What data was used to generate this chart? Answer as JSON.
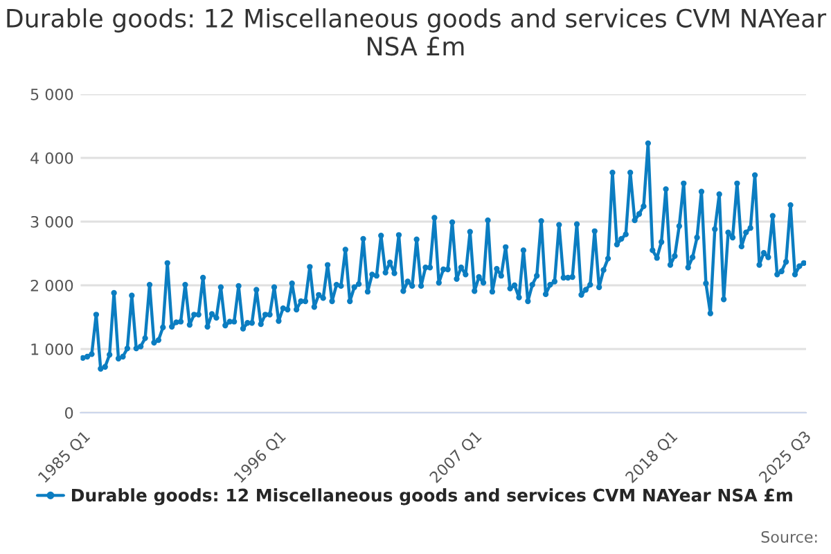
{
  "chart_data": {
    "type": "line",
    "title": "Durable goods: 12 Miscellaneous goods and services CVM NAYear NSA £m",
    "categories": [
      "1985 Q1",
      null,
      null,
      null,
      null,
      null,
      null,
      null,
      null,
      null,
      null,
      null,
      null,
      null,
      null,
      null,
      null,
      null,
      null,
      null,
      null,
      null,
      null,
      null,
      null,
      null,
      null,
      null,
      null,
      null,
      null,
      null,
      null,
      null,
      null,
      null,
      null,
      null,
      null,
      null,
      null,
      null,
      null,
      null,
      "1996 Q1",
      null,
      null,
      null,
      null,
      null,
      null,
      null,
      null,
      null,
      null,
      null,
      null,
      null,
      null,
      null,
      null,
      null,
      null,
      null,
      null,
      null,
      null,
      null,
      null,
      null,
      null,
      null,
      null,
      null,
      null,
      null,
      null,
      null,
      null,
      null,
      null,
      null,
      null,
      null,
      null,
      null,
      null,
      null,
      "2007 Q1",
      null,
      null,
      null,
      null,
      null,
      null,
      null,
      null,
      null,
      null,
      null,
      null,
      null,
      null,
      null,
      null,
      null,
      null,
      null,
      null,
      null,
      null,
      null,
      null,
      null,
      null,
      null,
      null,
      null,
      null,
      null,
      null,
      null,
      null,
      null,
      null,
      null,
      null,
      null,
      null,
      null,
      null,
      null,
      "2018 Q1",
      null,
      null,
      null,
      null,
      null,
      null,
      null,
      null,
      null,
      null,
      null,
      null,
      null,
      null,
      null,
      null,
      null,
      null,
      null,
      null,
      null,
      null,
      null,
      null,
      null,
      null,
      null,
      null,
      null,
      "2025 Q3"
    ],
    "series": [
      {
        "name": "Durable goods: 12 Miscellaneous goods and services CVM NAYear NSA £m",
        "color": "#0b7dc1",
        "values": [
          860,
          880,
          920,
          1540,
          690,
          720,
          910,
          1880,
          850,
          880,
          1010,
          1840,
          1010,
          1040,
          1170,
          2010,
          1100,
          1140,
          1340,
          2350,
          1350,
          1420,
          1430,
          2010,
          1380,
          1540,
          1540,
          2120,
          1350,
          1550,
          1490,
          1970,
          1370,
          1430,
          1430,
          1990,
          1320,
          1410,
          1410,
          1930,
          1390,
          1540,
          1540,
          1970,
          1440,
          1640,
          1620,
          2030,
          1620,
          1750,
          1750,
          2290,
          1660,
          1850,
          1800,
          2320,
          1750,
          2010,
          1990,
          2560,
          1750,
          1970,
          2020,
          2730,
          1900,
          2170,
          2150,
          2780,
          2200,
          2360,
          2190,
          2790,
          1910,
          2060,
          1990,
          2720,
          1990,
          2280,
          2280,
          3060,
          2040,
          2250,
          2250,
          2990,
          2100,
          2280,
          2170,
          2840,
          1910,
          2130,
          2040,
          3020,
          1900,
          2260,
          2150,
          2600,
          1950,
          2000,
          1810,
          2550,
          1750,
          2010,
          2150,
          3010,
          1860,
          2010,
          2060,
          2950,
          2120,
          2120,
          2130,
          2960,
          1850,
          1930,
          2010,
          2850,
          1970,
          2240,
          2420,
          3770,
          2640,
          2730,
          2800,
          3770,
          3020,
          3120,
          3240,
          4230,
          2550,
          2430,
          2680,
          3510,
          2320,
          2460,
          2930,
          3600,
          2280,
          2440,
          2750,
          3470,
          2030,
          1560,
          2880,
          3430,
          1780,
          2830,
          2750,
          3600,
          2610,
          2830,
          2900,
          3730,
          2320,
          2510,
          2440,
          3090,
          2170,
          2220,
          2370,
          3260,
          2170,
          2300,
          2350
        ]
      }
    ],
    "ylim": [
      0,
      5000
    ],
    "yticks": [
      0,
      {
        "value": 1000,
        "label": "1 000"
      },
      {
        "value": 2000,
        "label": "2 000"
      },
      {
        "value": 3000,
        "label": "3 000"
      },
      {
        "value": 4000,
        "label": "4 000"
      },
      {
        "value": 5000,
        "label": "5 000"
      }
    ],
    "grid": "y",
    "legend": "bottom",
    "marker": "circle",
    "line_style": "solid",
    "annotations": [
      "Source:"
    ]
  }
}
